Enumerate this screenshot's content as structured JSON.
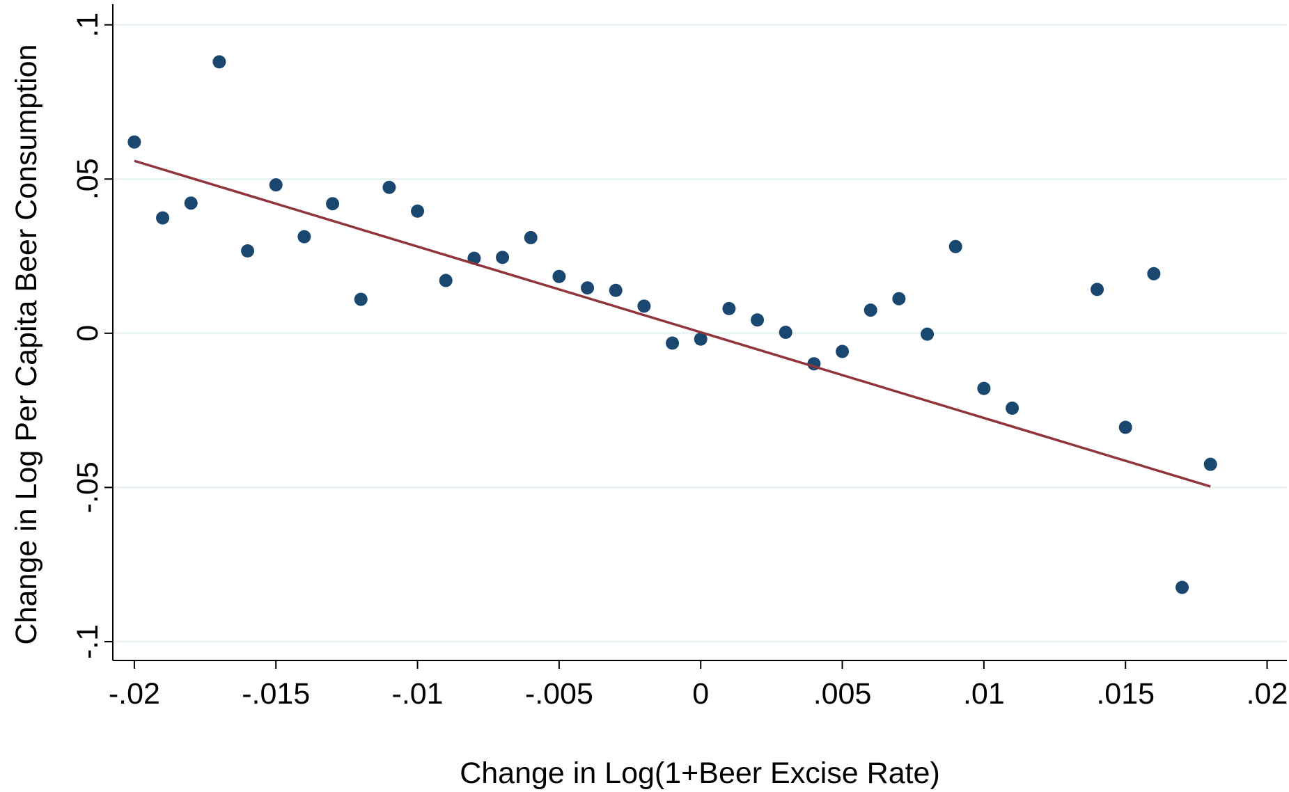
{
  "chart_data": {
    "type": "scatter",
    "x_label": "Change in Log(1+Beer Excise Rate)",
    "y_label": "Change in Log Per Capita Beer Consumption",
    "x": [
      -0.02,
      -0.019,
      -0.018,
      -0.017,
      -0.016,
      -0.015,
      -0.014,
      -0.013,
      -0.012,
      -0.011,
      -0.01,
      -0.009,
      -0.008,
      -0.007,
      -0.006,
      -0.005,
      -0.004,
      -0.003,
      -0.002,
      -0.001,
      0,
      0.001,
      0.002,
      0.003,
      0.004,
      0.005,
      0.006,
      0.007,
      0.008,
      0.009,
      0.01,
      0.011,
      0.014,
      0.015,
      0.016,
      0.017,
      0.018
    ],
    "values": [
      0.062,
      0.0374,
      0.0422,
      0.088,
      0.0267,
      0.0481,
      0.0313,
      0.042,
      0.011,
      0.0473,
      0.0396,
      0.0171,
      0.0243,
      0.0246,
      0.031,
      0.0184,
      0.0147,
      0.0139,
      0.0088,
      -0.0032,
      -0.0019,
      0.008,
      0.0043,
      0.0003,
      -0.0099,
      -0.0059,
      0.0075,
      0.0112,
      -0.0003,
      0.0281,
      -0.0179,
      -0.0243,
      0.0142,
      -0.0305,
      0.0193,
      -0.0824,
      -0.0425
    ],
    "color": "#1a476f",
    "fit_line": {
      "x": [
        -0.02,
        0.018
      ],
      "y": [
        0.0559,
        -0.0497
      ],
      "color": "#90353b"
    },
    "xlim": [
      -0.02076,
      0.0207
    ],
    "ylim": [
      -0.1061,
      0.1067
    ],
    "xticks": [
      {
        "value": -0.02,
        "label": "-.02"
      },
      {
        "value": -0.015,
        "label": "-.015"
      },
      {
        "value": -0.01,
        "label": "-.01"
      },
      {
        "value": -0.005,
        "label": "-.005"
      },
      0,
      {
        "value": 0.005,
        "label": ".005"
      },
      {
        "value": 0.01,
        "label": ".01"
      },
      {
        "value": 0.015,
        "label": ".015"
      },
      {
        "value": 0.02,
        "label": ".02"
      }
    ],
    "yticks": [
      {
        "value": -0.1,
        "label": "-.1"
      },
      {
        "value": -0.05,
        "label": "-.05"
      },
      0,
      {
        "value": 0.05,
        "label": ".05"
      },
      {
        "value": 0.1,
        "label": ".1"
      }
    ],
    "grid": true
  }
}
